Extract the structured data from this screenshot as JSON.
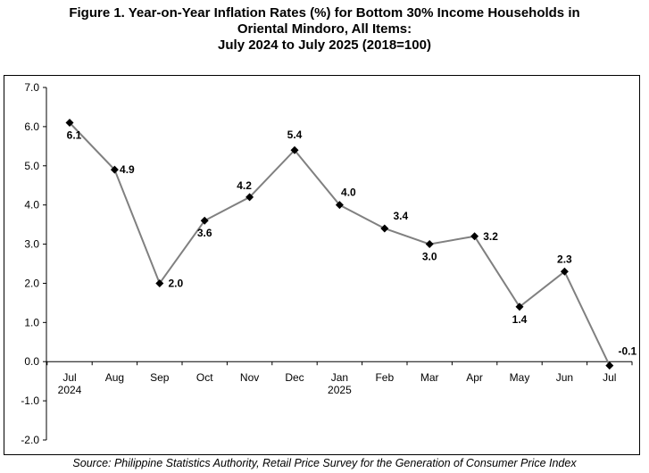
{
  "title_lines": [
    "Figure 1. Year-on-Year Inflation Rates (%) for Bottom 30% Income Households in",
    "Oriental Mindoro, All Items:",
    "July 2024 to July 2025 (2018=100)"
  ],
  "source": "Source: Philippine Statistics Authority, Retail Price Survey for the Generation of Consumer Price Index",
  "colors": {
    "line": "#808080",
    "marker": "#000000",
    "axis": "#000000",
    "text": "#000000"
  },
  "chart_data": {
    "type": "line",
    "categories": [
      "Jul",
      "Aug",
      "Sep",
      "Oct",
      "Nov",
      "Dec",
      "Jan",
      "Feb",
      "Mar",
      "Apr",
      "May",
      "Jun",
      "Jul"
    ],
    "year_labels": [
      "2024",
      "",
      "",
      "",
      "",
      "",
      "2025",
      "",
      "",
      "",
      "",
      "",
      ""
    ],
    "values": [
      6.1,
      4.9,
      2.0,
      3.6,
      4.2,
      5.4,
      4.0,
      3.4,
      3.0,
      3.2,
      1.4,
      2.3,
      -0.1
    ],
    "data_labels": [
      "6.1",
      "4.9",
      "2.0",
      "3.6",
      "4.2",
      "5.4",
      "4.0",
      "3.4",
      "3.0",
      "3.2",
      "1.4",
      "2.3",
      "-0.1"
    ],
    "ylim": [
      -2.0,
      7.0
    ],
    "yticks": [
      7.0,
      6.0,
      5.0,
      4.0,
      3.0,
      2.0,
      1.0,
      0.0,
      -1.0,
      -2.0
    ],
    "ytick_labels": [
      "7.0",
      "6.0",
      "5.0",
      "4.0",
      "3.0",
      "2.0",
      "1.0",
      "0.0",
      "-1.0",
      "-2.0"
    ],
    "marker": "diamond",
    "grid": false,
    "legend": "none"
  }
}
